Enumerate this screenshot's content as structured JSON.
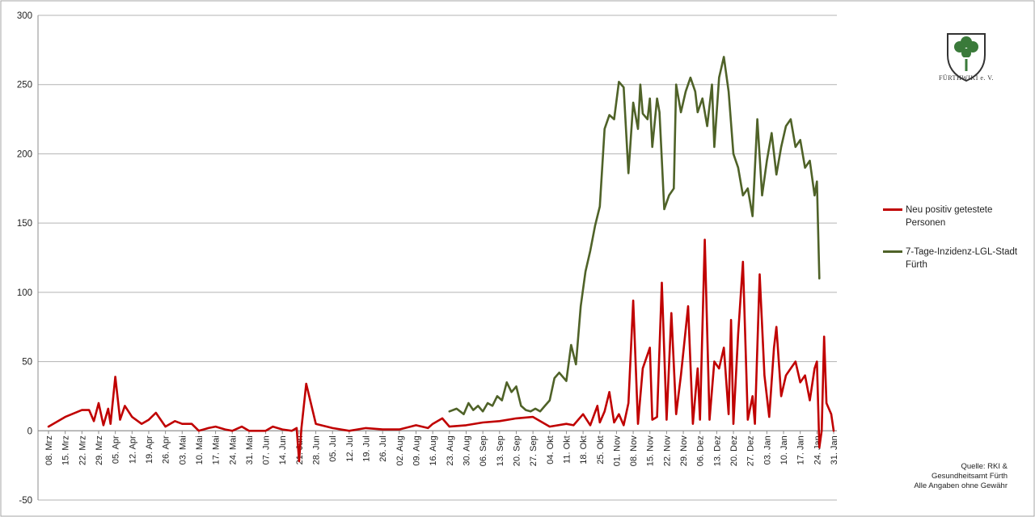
{
  "chart_data": {
    "type": "line",
    "title": "",
    "xlabel": "",
    "ylabel": "",
    "ylim": [
      -50,
      300
    ],
    "yticks": [
      -50,
      0,
      50,
      100,
      150,
      200,
      250,
      300
    ],
    "grid": "horizontal",
    "legend_position": "right",
    "x_tick_labels": [
      "08. Mrz",
      "15. Mrz",
      "22. Mrz",
      "29. Mrz",
      "05. Apr",
      "12. Apr",
      "19. Apr",
      "26. Apr",
      "03. Mai",
      "10. Mai",
      "17. Mai",
      "24. Mai",
      "31. Mai",
      "07. Jun",
      "14. Jun",
      "21. Jun",
      "28. Jun",
      "05. Jul",
      "12. Jul",
      "19. Jul",
      "26. Jul",
      "02. Aug",
      "09. Aug",
      "16. Aug",
      "23. Aug",
      "30. Aug",
      "06. Sep",
      "13. Sep",
      "20. Sep",
      "27. Sep",
      "04. Okt",
      "11. Okt",
      "18. Okt",
      "25. Okt",
      "01. Nov",
      "08. Nov",
      "15. Nov",
      "22. Nov",
      "29. Nov",
      "06. Dez",
      "13. Dez",
      "20. Dez",
      "27. Dez",
      "03. Jan",
      "10. Jan",
      "17. Jan",
      "24. Jan",
      "31. Jan"
    ],
    "series": [
      {
        "name": "Neu positiv getestete Personen",
        "color": "#c00000",
        "x": [
          "08. Mrz",
          "15. Mrz",
          "22. Mrz",
          "25. Mrz",
          "27. Mrz",
          "29. Mrz",
          "31. Mrz",
          "02. Apr",
          "03. Apr",
          "05. Apr",
          "07. Apr",
          "09. Apr",
          "12. Apr",
          "16. Apr",
          "19. Apr",
          "22. Apr",
          "26. Apr",
          "30. Apr",
          "03. Mai",
          "07. Mai",
          "10. Mai",
          "14. Mai",
          "17. Mai",
          "21. Mai",
          "24. Mai",
          "28. Mai",
          "31. Mai",
          "07. Jun",
          "10. Jun",
          "14. Jun",
          "18. Jun",
          "20. Jun",
          "21. Jun",
          "22. Jun",
          "24. Jun",
          "28. Jun",
          "05. Jul",
          "12. Jul",
          "19. Jul",
          "26. Jul",
          "02. Aug",
          "09. Aug",
          "14. Aug",
          "16. Aug",
          "20. Aug",
          "23. Aug",
          "30. Aug",
          "06. Sep",
          "13. Sep",
          "20. Sep",
          "27. Sep",
          "04. Okt",
          "11. Okt",
          "14. Okt",
          "18. Okt",
          "21. Okt",
          "24. Okt",
          "25. Okt",
          "27. Okt",
          "29. Okt",
          "31. Okt",
          "02. Nov",
          "04. Nov",
          "06. Nov",
          "08. Nov",
          "10. Nov",
          "12. Nov",
          "15. Nov",
          "16. Nov",
          "18. Nov",
          "20. Nov",
          "22. Nov",
          "24. Nov",
          "26. Nov",
          "28. Nov",
          "01. Dez",
          "03. Dez",
          "05. Dez",
          "06. Dez",
          "08. Dez",
          "10. Dez",
          "12. Dez",
          "14. Dez",
          "16. Dez",
          "18. Dez",
          "19. Dez",
          "20. Dez",
          "22. Dez",
          "24. Dez",
          "26. Dez",
          "28. Dez",
          "29. Dez",
          "31. Dez",
          "02. Jan",
          "04. Jan",
          "06. Jan",
          "07. Jan",
          "09. Jan",
          "11. Jan",
          "13. Jan",
          "15. Jan",
          "17. Jan",
          "19. Jan",
          "21. Jan",
          "23. Jan",
          "24. Jan",
          "25. Jan",
          "26. Jan",
          "27. Jan",
          "28. Jan",
          "30. Jan",
          "31. Jan"
        ],
        "values": [
          3,
          10,
          15,
          15,
          7,
          20,
          4,
          16,
          5,
          39,
          8,
          18,
          10,
          5,
          8,
          13,
          3,
          7,
          5,
          5,
          0,
          2,
          3,
          1,
          0,
          3,
          0,
          0,
          3,
          1,
          0,
          2,
          -22,
          2,
          34,
          5,
          2,
          0,
          2,
          1,
          1,
          4,
          2,
          5,
          9,
          3,
          4,
          6,
          7,
          9,
          10,
          3,
          5,
          4,
          12,
          4,
          18,
          6,
          14,
          28,
          6,
          12,
          4,
          20,
          94,
          5,
          45,
          60,
          8,
          10,
          107,
          8,
          85,
          12,
          40,
          90,
          5,
          45,
          8,
          138,
          8,
          50,
          45,
          60,
          12,
          80,
          5,
          70,
          122,
          8,
          25,
          5,
          113,
          40,
          10,
          60,
          75,
          25,
          40,
          45,
          50,
          35,
          40,
          22,
          45,
          50,
          -12,
          0,
          68,
          20,
          12,
          0
        ],
        "markers": false
      },
      {
        "name": "7-Tage-Inzidenz-LGL-Stadt Fürth",
        "color": "#4f6228",
        "x": [
          "23. Aug",
          "26. Aug",
          "29. Aug",
          "31. Aug",
          "02. Sep",
          "04. Sep",
          "06. Sep",
          "08. Sep",
          "10. Sep",
          "12. Sep",
          "14. Sep",
          "16. Sep",
          "18. Sep",
          "20. Sep",
          "22. Sep",
          "24. Sep",
          "26. Sep",
          "28. Sep",
          "30. Sep",
          "02. Okt",
          "04. Okt",
          "06. Okt",
          "08. Okt",
          "11. Okt",
          "13. Okt",
          "15. Okt",
          "17. Okt",
          "19. Okt",
          "21. Okt",
          "23. Okt",
          "25. Okt",
          "27. Okt",
          "29. Okt",
          "31. Okt",
          "02. Nov",
          "04. Nov",
          "06. Nov",
          "08. Nov",
          "10. Nov",
          "11. Nov",
          "12. Nov",
          "14. Nov",
          "15. Nov",
          "16. Nov",
          "18. Nov",
          "19. Nov",
          "21. Nov",
          "23. Nov",
          "25. Nov",
          "26. Nov",
          "28. Nov",
          "30. Nov",
          "02. Dez",
          "04. Dez",
          "05. Dez",
          "07. Dez",
          "09. Dez",
          "11. Dez",
          "12. Dez",
          "14. Dez",
          "16. Dez",
          "18. Dez",
          "20. Dez",
          "22. Dez",
          "24. Dez",
          "26. Dez",
          "28. Dez",
          "30. Dez",
          "01. Jan",
          "03. Jan",
          "05. Jan",
          "07. Jan",
          "09. Jan",
          "11. Jan",
          "13. Jan",
          "15. Jan",
          "17. Jan",
          "19. Jan",
          "21. Jan",
          "23. Jan",
          "24. Jan",
          "25. Jan"
        ],
        "values": [
          14,
          16,
          12,
          20,
          15,
          18,
          14,
          20,
          18,
          25,
          22,
          35,
          28,
          32,
          18,
          15,
          14,
          16,
          14,
          18,
          22,
          38,
          42,
          36,
          62,
          48,
          90,
          115,
          130,
          148,
          162,
          218,
          228,
          225,
          252,
          248,
          186,
          237,
          218,
          250,
          229,
          225,
          240,
          205,
          240,
          230,
          160,
          170,
          175,
          250,
          230,
          245,
          255,
          245,
          230,
          240,
          220,
          250,
          205,
          255,
          270,
          245,
          200,
          190,
          170,
          175,
          155,
          225,
          170,
          195,
          215,
          185,
          205,
          220,
          225,
          205,
          210,
          190,
          195,
          170,
          180,
          110
        ]
      }
    ]
  },
  "legend": {
    "items": [
      {
        "label": "Neu positiv getestete Personen"
      },
      {
        "label": "7-Tage-Inzidenz-LGL-Stadt Fürth"
      }
    ]
  },
  "logo": {
    "text": "FÜRTHWIKI e. V."
  },
  "source": {
    "line1": "Quelle: RKI &",
    "line2": "Gesundheitsamt Fürth",
    "line3": "Alle Angaben ohne Gewähr"
  }
}
